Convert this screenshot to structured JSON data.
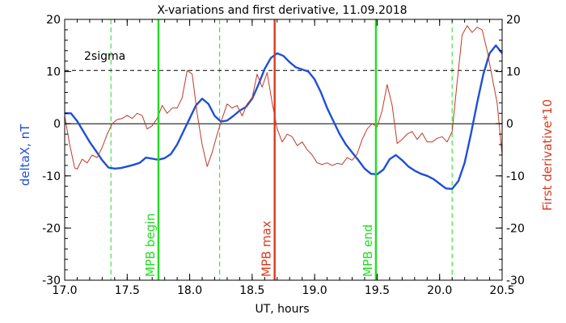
{
  "chart_data": {
    "type": "line",
    "title": "X-variations and first derivative, 11.09.2018",
    "xlabel": "UT, hours",
    "ylabel_left": "deltaX, nT",
    "ylabel_right": "First derivative*10",
    "xlim": [
      17.0,
      20.5
    ],
    "ylim_left": [
      -30,
      20
    ],
    "ylim_right": [
      -30,
      20
    ],
    "x_ticks": [
      "17.0",
      "17.5",
      "18.0",
      "18.5",
      "19.0",
      "19.5",
      "20.0",
      "20.5"
    ],
    "y_ticks": [
      "-30",
      "-20",
      "-10",
      "0",
      "10",
      "20"
    ],
    "grid": false,
    "sigma": {
      "label": "2sigma",
      "value": 10.2,
      "color": "#000000"
    },
    "zero_line": 0,
    "colors": {
      "deltaX": "#1f4fd6",
      "derivative": "#c0392b",
      "mpb_begin_end": "#22dd22",
      "mpb_max": "#d93a1c",
      "sigma_dashed": "#22dd22"
    },
    "markers": [
      {
        "label": "MPB begin",
        "x": 17.75,
        "style": "solid",
        "color": "#22dd22"
      },
      {
        "label": "MPB max",
        "x": 18.68,
        "style": "solid",
        "color": "#d93a1c"
      },
      {
        "label": "MPB end",
        "x": 19.49,
        "style": "solid",
        "color": "#22dd22"
      }
    ],
    "dashed_markers": [
      17.37,
      18.24,
      20.1
    ],
    "series": [
      {
        "axis": "left",
        "color": "#1f4fd6",
        "points": [
          [
            17.0,
            2.0
          ],
          [
            17.05,
            2.0
          ],
          [
            17.1,
            0.5
          ],
          [
            17.15,
            -1.5
          ],
          [
            17.2,
            -3.5
          ],
          [
            17.25,
            -5.2
          ],
          [
            17.3,
            -7.0
          ],
          [
            17.35,
            -8.4
          ],
          [
            17.4,
            -8.6
          ],
          [
            17.45,
            -8.5
          ],
          [
            17.5,
            -8.2
          ],
          [
            17.55,
            -7.9
          ],
          [
            17.6,
            -7.5
          ],
          [
            17.65,
            -6.5
          ],
          [
            17.7,
            -6.7
          ],
          [
            17.75,
            -6.9
          ],
          [
            17.8,
            -6.6
          ],
          [
            17.85,
            -5.8
          ],
          [
            17.9,
            -4.0
          ],
          [
            17.95,
            -1.5
          ],
          [
            18.0,
            1.0
          ],
          [
            18.05,
            3.5
          ],
          [
            18.1,
            4.8
          ],
          [
            18.15,
            3.8
          ],
          [
            18.2,
            1.5
          ],
          [
            18.25,
            0.4
          ],
          [
            18.3,
            0.6
          ],
          [
            18.35,
            1.5
          ],
          [
            18.4,
            2.5
          ],
          [
            18.45,
            3.2
          ],
          [
            18.5,
            4.8
          ],
          [
            18.55,
            7.5
          ],
          [
            18.6,
            10.5
          ],
          [
            18.65,
            12.6
          ],
          [
            18.7,
            13.5
          ],
          [
            18.75,
            13.0
          ],
          [
            18.8,
            11.8
          ],
          [
            18.85,
            10.8
          ],
          [
            18.9,
            10.4
          ],
          [
            18.95,
            10.0
          ],
          [
            19.0,
            8.5
          ],
          [
            19.05,
            6.0
          ],
          [
            19.1,
            3.0
          ],
          [
            19.15,
            0.5
          ],
          [
            19.2,
            -2.0
          ],
          [
            19.25,
            -4.0
          ],
          [
            19.3,
            -5.5
          ],
          [
            19.35,
            -7.0
          ],
          [
            19.4,
            -8.6
          ],
          [
            19.45,
            -9.6
          ],
          [
            19.5,
            -9.7
          ],
          [
            19.55,
            -8.8
          ],
          [
            19.6,
            -6.8
          ],
          [
            19.65,
            -6.0
          ],
          [
            19.7,
            -7.0
          ],
          [
            19.75,
            -8.2
          ],
          [
            19.8,
            -9.0
          ],
          [
            19.85,
            -9.6
          ],
          [
            19.9,
            -10.0
          ],
          [
            19.95,
            -10.6
          ],
          [
            20.0,
            -11.5
          ],
          [
            20.05,
            -12.4
          ],
          [
            20.1,
            -12.5
          ],
          [
            20.15,
            -11.0
          ],
          [
            20.2,
            -7.5
          ],
          [
            20.25,
            -2.0
          ],
          [
            20.3,
            4.0
          ],
          [
            20.35,
            9.5
          ],
          [
            20.4,
            13.5
          ],
          [
            20.45,
            15.0
          ],
          [
            20.5,
            13.5
          ]
        ]
      },
      {
        "axis": "right",
        "color": "#c0392b",
        "points": [
          [
            17.0,
            1.5
          ],
          [
            17.04,
            -4.0
          ],
          [
            17.08,
            -8.5
          ],
          [
            17.1,
            -8.7
          ],
          [
            17.14,
            -6.8
          ],
          [
            17.18,
            -7.5
          ],
          [
            17.22,
            -6.0
          ],
          [
            17.26,
            -6.5
          ],
          [
            17.3,
            -4.5
          ],
          [
            17.34,
            -2.0
          ],
          [
            17.38,
            0.0
          ],
          [
            17.42,
            0.8
          ],
          [
            17.46,
            1.0
          ],
          [
            17.5,
            1.6
          ],
          [
            17.54,
            1.0
          ],
          [
            17.58,
            2.0
          ],
          [
            17.62,
            1.6
          ],
          [
            17.66,
            -1.0
          ],
          [
            17.7,
            -0.4
          ],
          [
            17.74,
            1.0
          ],
          [
            17.78,
            3.5
          ],
          [
            17.82,
            2.0
          ],
          [
            17.86,
            3.0
          ],
          [
            17.9,
            3.0
          ],
          [
            17.94,
            5.0
          ],
          [
            17.98,
            10.2
          ],
          [
            18.02,
            9.5
          ],
          [
            18.06,
            2.0
          ],
          [
            18.1,
            -4.0
          ],
          [
            18.14,
            -8.2
          ],
          [
            18.18,
            -5.5
          ],
          [
            18.22,
            -2.0
          ],
          [
            18.26,
            1.0
          ],
          [
            18.3,
            3.8
          ],
          [
            18.34,
            3.0
          ],
          [
            18.38,
            3.5
          ],
          [
            18.42,
            1.5
          ],
          [
            18.46,
            3.8
          ],
          [
            18.5,
            5.0
          ],
          [
            18.54,
            9.5
          ],
          [
            18.58,
            7.0
          ],
          [
            18.62,
            9.8
          ],
          [
            18.66,
            4.0
          ],
          [
            18.7,
            -1.0
          ],
          [
            18.74,
            -3.5
          ],
          [
            18.78,
            -2.0
          ],
          [
            18.82,
            -2.5
          ],
          [
            18.86,
            -4.2
          ],
          [
            18.9,
            -3.5
          ],
          [
            18.94,
            -5.0
          ],
          [
            18.98,
            -6.0
          ],
          [
            19.02,
            -7.5
          ],
          [
            19.06,
            -7.8
          ],
          [
            19.1,
            -7.5
          ],
          [
            19.14,
            -8.0
          ],
          [
            19.18,
            -7.6
          ],
          [
            19.22,
            -7.8
          ],
          [
            19.26,
            -6.5
          ],
          [
            19.3,
            -7.0
          ],
          [
            19.34,
            -5.8
          ],
          [
            19.38,
            -3.0
          ],
          [
            19.42,
            -1.0
          ],
          [
            19.46,
            0.0
          ],
          [
            19.5,
            -0.6
          ],
          [
            19.54,
            2.5
          ],
          [
            19.58,
            7.5
          ],
          [
            19.62,
            3.5
          ],
          [
            19.66,
            -3.8
          ],
          [
            19.7,
            -3.0
          ],
          [
            19.74,
            -2.0
          ],
          [
            19.78,
            -1.5
          ],
          [
            19.82,
            -3.0
          ],
          [
            19.86,
            -1.8
          ],
          [
            19.9,
            -3.5
          ],
          [
            19.94,
            -3.5
          ],
          [
            19.98,
            -2.8
          ],
          [
            20.02,
            -2.5
          ],
          [
            20.06,
            -3.5
          ],
          [
            20.1,
            -1.5
          ],
          [
            20.14,
            8.0
          ],
          [
            20.18,
            17.0
          ],
          [
            20.22,
            18.8
          ],
          [
            20.26,
            17.5
          ],
          [
            20.3,
            18.5
          ],
          [
            20.34,
            18.0
          ],
          [
            20.38,
            14.0
          ],
          [
            20.42,
            9.0
          ],
          [
            20.46,
            4.0
          ],
          [
            20.5,
            -6.0
          ]
        ]
      }
    ]
  }
}
